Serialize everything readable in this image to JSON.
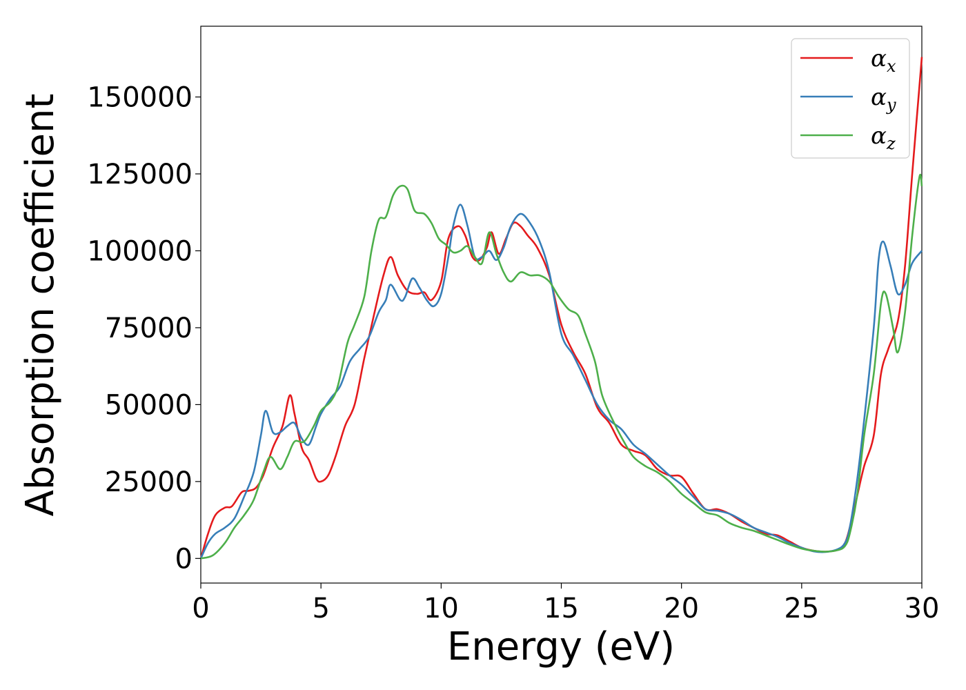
{
  "chart_data": {
    "type": "line",
    "title": "",
    "xlabel": "Energy (eV)",
    "ylabel": "Absorption coefficient",
    "xlim": [
      0,
      30
    ],
    "ylim": [
      -8000,
      173000
    ],
    "xticks": [
      0,
      5,
      10,
      15,
      20,
      25,
      30
    ],
    "xtick_labels": [
      "0",
      "5",
      "10",
      "15",
      "20",
      "25",
      "30"
    ],
    "yticks": [
      0,
      25000,
      50000,
      75000,
      100000,
      125000,
      150000
    ],
    "ytick_labels": [
      "0",
      "25000",
      "50000",
      "75000",
      "100000",
      "125000",
      "150000"
    ],
    "grid": false,
    "legend_position": "top-right",
    "series": [
      {
        "name": "αx",
        "symbol": "α",
        "subscript": "x",
        "color": "#e41a1c",
        "points": [
          [
            0,
            0
          ],
          [
            0.3,
            8000
          ],
          [
            0.6,
            14000
          ],
          [
            1,
            16500
          ],
          [
            1.3,
            17000
          ],
          [
            1.7,
            21500
          ],
          [
            2,
            22000
          ],
          [
            2.3,
            23000
          ],
          [
            2.6,
            27000
          ],
          [
            3,
            36000
          ],
          [
            3.4,
            43000
          ],
          [
            3.7,
            53000
          ],
          [
            3.9,
            47000
          ],
          [
            4.2,
            36000
          ],
          [
            4.5,
            32000
          ],
          [
            4.8,
            26000
          ],
          [
            5,
            25000
          ],
          [
            5.3,
            27000
          ],
          [
            5.6,
            33000
          ],
          [
            6,
            43000
          ],
          [
            6.4,
            50000
          ],
          [
            6.8,
            65000
          ],
          [
            7.2,
            79000
          ],
          [
            7.6,
            92000
          ],
          [
            7.9,
            98000
          ],
          [
            8.2,
            92000
          ],
          [
            8.6,
            87000
          ],
          [
            9,
            86000
          ],
          [
            9.3,
            86500
          ],
          [
            9.6,
            84000
          ],
          [
            10,
            90000
          ],
          [
            10.3,
            104000
          ],
          [
            10.7,
            108000
          ],
          [
            11,
            105000
          ],
          [
            11.3,
            98000
          ],
          [
            11.6,
            97000
          ],
          [
            11.9,
            101000
          ],
          [
            12.1,
            106000
          ],
          [
            12.4,
            99000
          ],
          [
            12.7,
            104000
          ],
          [
            13,
            109000
          ],
          [
            13.3,
            108000
          ],
          [
            13.6,
            105000
          ],
          [
            14,
            101000
          ],
          [
            14.5,
            92000
          ],
          [
            15,
            76000
          ],
          [
            15.5,
            67000
          ],
          [
            16,
            60000
          ],
          [
            16.5,
            49000
          ],
          [
            17,
            44000
          ],
          [
            17.5,
            37000
          ],
          [
            18,
            35000
          ],
          [
            18.5,
            33500
          ],
          [
            19,
            29000
          ],
          [
            19.5,
            27000
          ],
          [
            20,
            26500
          ],
          [
            20.5,
            21000
          ],
          [
            21,
            16000
          ],
          [
            21.5,
            16000
          ],
          [
            22,
            14500
          ],
          [
            22.5,
            12000
          ],
          [
            23,
            10000
          ],
          [
            23.5,
            8000
          ],
          [
            24,
            7500
          ],
          [
            24.5,
            5500
          ],
          [
            25,
            3500
          ],
          [
            25.5,
            2500
          ],
          [
            26,
            2200
          ],
          [
            26.5,
            2800
          ],
          [
            26.8,
            5000
          ],
          [
            27,
            10000
          ],
          [
            27.3,
            20000
          ],
          [
            27.6,
            30000
          ],
          [
            28,
            40000
          ],
          [
            28.3,
            60000
          ],
          [
            28.6,
            68000
          ],
          [
            29,
            77000
          ],
          [
            29.3,
            95000
          ],
          [
            29.6,
            125000
          ],
          [
            30,
            163000
          ]
        ]
      },
      {
        "name": "αy",
        "symbol": "α",
        "subscript": "y",
        "color": "#377eb8",
        "points": [
          [
            0,
            0
          ],
          [
            0.3,
            5000
          ],
          [
            0.6,
            8000
          ],
          [
            1,
            10000
          ],
          [
            1.4,
            13000
          ],
          [
            1.8,
            20000
          ],
          [
            2.2,
            28000
          ],
          [
            2.5,
            40000
          ],
          [
            2.7,
            48000
          ],
          [
            3,
            41000
          ],
          [
            3.3,
            41000
          ],
          [
            3.6,
            43000
          ],
          [
            3.9,
            44000
          ],
          [
            4.2,
            39000
          ],
          [
            4.5,
            37000
          ],
          [
            4.8,
            43000
          ],
          [
            5,
            47000
          ],
          [
            5.4,
            52000
          ],
          [
            5.8,
            56000
          ],
          [
            6.2,
            64000
          ],
          [
            6.6,
            68000
          ],
          [
            7,
            72000
          ],
          [
            7.4,
            80000
          ],
          [
            7.7,
            84000
          ],
          [
            7.9,
            89000
          ],
          [
            8.3,
            84000
          ],
          [
            8.5,
            85000
          ],
          [
            8.8,
            91000
          ],
          [
            9.1,
            88000
          ],
          [
            9.4,
            84000
          ],
          [
            9.7,
            82000
          ],
          [
            10,
            86000
          ],
          [
            10.3,
            98000
          ],
          [
            10.5,
            108000
          ],
          [
            10.8,
            115000
          ],
          [
            11.1,
            108000
          ],
          [
            11.4,
            98000
          ],
          [
            11.7,
            98000
          ],
          [
            12,
            100000
          ],
          [
            12.3,
            97000
          ],
          [
            12.6,
            101000
          ],
          [
            12.9,
            108000
          ],
          [
            13.3,
            112000
          ],
          [
            13.7,
            109000
          ],
          [
            14.1,
            103000
          ],
          [
            14.5,
            93000
          ],
          [
            15,
            73000
          ],
          [
            15.5,
            66000
          ],
          [
            16,
            58000
          ],
          [
            16.5,
            50000
          ],
          [
            17,
            45000
          ],
          [
            17.5,
            42000
          ],
          [
            18,
            37000
          ],
          [
            18.5,
            34000
          ],
          [
            19,
            30500
          ],
          [
            19.5,
            27000
          ],
          [
            20,
            24000
          ],
          [
            20.5,
            20000
          ],
          [
            21,
            16000
          ],
          [
            21.5,
            15500
          ],
          [
            22,
            14500
          ],
          [
            22.5,
            12500
          ],
          [
            23,
            10000
          ],
          [
            23.5,
            8500
          ],
          [
            24,
            7000
          ],
          [
            24.5,
            5000
          ],
          [
            25,
            3500
          ],
          [
            25.5,
            2300
          ],
          [
            26,
            2100
          ],
          [
            26.5,
            3000
          ],
          [
            26.8,
            5000
          ],
          [
            27,
            10000
          ],
          [
            27.3,
            25000
          ],
          [
            27.6,
            45000
          ],
          [
            28,
            75000
          ],
          [
            28.2,
            97000
          ],
          [
            28.4,
            103000
          ],
          [
            28.7,
            95000
          ],
          [
            29,
            86000
          ],
          [
            29.3,
            89000
          ],
          [
            29.6,
            96000
          ],
          [
            30,
            100000
          ]
        ]
      },
      {
        "name": "αz",
        "symbol": "α",
        "subscript": "z",
        "color": "#4daf4a",
        "points": [
          [
            0,
            0
          ],
          [
            0.5,
            1000
          ],
          [
            1,
            5000
          ],
          [
            1.4,
            10000
          ],
          [
            1.8,
            14000
          ],
          [
            2.2,
            19000
          ],
          [
            2.6,
            28000
          ],
          [
            2.9,
            33000
          ],
          [
            3.3,
            29000
          ],
          [
            3.6,
            33000
          ],
          [
            3.9,
            38000
          ],
          [
            4.3,
            38000
          ],
          [
            4.7,
            43000
          ],
          [
            5,
            48000
          ],
          [
            5.4,
            51000
          ],
          [
            5.7,
            56000
          ],
          [
            6.1,
            70000
          ],
          [
            6.4,
            76000
          ],
          [
            6.8,
            85000
          ],
          [
            7.1,
            100000
          ],
          [
            7.4,
            110000
          ],
          [
            7.7,
            111000
          ],
          [
            8,
            118000
          ],
          [
            8.3,
            121000
          ],
          [
            8.6,
            120000
          ],
          [
            8.9,
            113000
          ],
          [
            9.3,
            112000
          ],
          [
            9.6,
            109000
          ],
          [
            9.9,
            104000
          ],
          [
            10.2,
            102000
          ],
          [
            10.5,
            99500
          ],
          [
            10.8,
            100000
          ],
          [
            11.1,
            101500
          ],
          [
            11.4,
            98000
          ],
          [
            11.7,
            96000
          ],
          [
            12,
            106000
          ],
          [
            12.3,
            99000
          ],
          [
            12.6,
            93000
          ],
          [
            12.9,
            90000
          ],
          [
            13.3,
            93000
          ],
          [
            13.7,
            92000
          ],
          [
            14.1,
            92000
          ],
          [
            14.5,
            90000
          ],
          [
            14.9,
            85000
          ],
          [
            15.3,
            81000
          ],
          [
            15.7,
            79000
          ],
          [
            16,
            73000
          ],
          [
            16.4,
            64000
          ],
          [
            16.7,
            53000
          ],
          [
            17.2,
            44000
          ],
          [
            17.6,
            38000
          ],
          [
            18,
            33000
          ],
          [
            18.5,
            30000
          ],
          [
            19,
            28000
          ],
          [
            19.5,
            25000
          ],
          [
            20,
            21000
          ],
          [
            20.5,
            18000
          ],
          [
            21,
            15000
          ],
          [
            21.5,
            14000
          ],
          [
            22,
            11500
          ],
          [
            22.5,
            10000
          ],
          [
            23,
            9000
          ],
          [
            23.5,
            7500
          ],
          [
            24,
            6000
          ],
          [
            24.5,
            4500
          ],
          [
            25,
            3200
          ],
          [
            25.5,
            2500
          ],
          [
            26,
            2200
          ],
          [
            26.5,
            2700
          ],
          [
            26.8,
            4000
          ],
          [
            27,
            8000
          ],
          [
            27.3,
            20000
          ],
          [
            27.6,
            40000
          ],
          [
            28,
            60000
          ],
          [
            28.3,
            83000
          ],
          [
            28.5,
            86000
          ],
          [
            28.8,
            75000
          ],
          [
            29,
            67000
          ],
          [
            29.3,
            80000
          ],
          [
            29.6,
            105000
          ],
          [
            29.9,
            124000
          ],
          [
            30,
            121000
          ]
        ]
      }
    ]
  }
}
